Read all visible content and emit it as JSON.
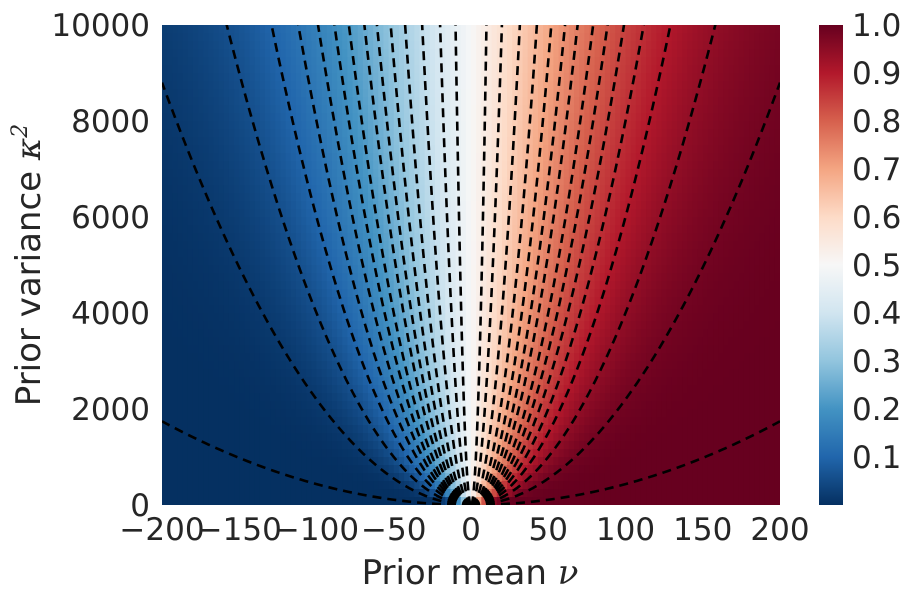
{
  "chart_data": {
    "type": "heatmap",
    "xlabel": "Prior mean",
    "xlabel_symbol": "ν",
    "ylabel": "Prior variance",
    "ylabel_symbol": "κ",
    "ylabel_exponent": "2",
    "xlim": [
      -200,
      200
    ],
    "ylim": [
      0,
      10000
    ],
    "xticks": [
      -200,
      -150,
      -100,
      -50,
      0,
      50,
      100,
      150,
      200
    ],
    "xtick_labels": [
      "−200",
      "−150",
      "−100",
      "−50",
      "0",
      "50",
      "100",
      "150",
      "200"
    ],
    "yticks": [
      0,
      2000,
      4000,
      6000,
      8000,
      10000
    ],
    "ytick_labels": [
      "0",
      "2000",
      "4000",
      "6000",
      "8000",
      "10000"
    ],
    "colorbar": {
      "range": [
        0,
        1
      ],
      "ticks": [
        0.1,
        0.2,
        0.3,
        0.4,
        0.5,
        0.6,
        0.7,
        0.8,
        0.9,
        1.0
      ],
      "tick_labels": [
        "0.1",
        "0.2",
        "0.3",
        "0.4",
        "0.5",
        "0.6",
        "0.7",
        "0.8",
        "0.9",
        "1.0"
      ],
      "colormap": "RdBu_r"
    },
    "surface": {
      "z_formula": "Phi(nu / sqrt(kappa2))",
      "range": [
        0,
        1
      ]
    },
    "contours": {
      "style": "black dashed",
      "color": "#000000",
      "levels": [
        0.1,
        0.2,
        0.3,
        0.4,
        0.5,
        0.6,
        0.7,
        0.8,
        0.9
      ],
      "slopes": [
        0.0436,
        0.22,
        0.4,
        0.6,
        0.8,
        1.02,
        1.28,
        1.6,
        2.1,
        2.7,
        3.7,
        5.5,
        10.0,
        25.0,
        100.0
      ]
    },
    "grid": false
  },
  "colors": {
    "colormap_stops": [
      "#053061",
      "#2166ac",
      "#4393c3",
      "#92c5de",
      "#d1e5f0",
      "#f7f7f7",
      "#fddbc7",
      "#f4a582",
      "#d6604d",
      "#b2182b",
      "#67001f"
    ],
    "text": "#262626",
    "contour": "#000000"
  }
}
